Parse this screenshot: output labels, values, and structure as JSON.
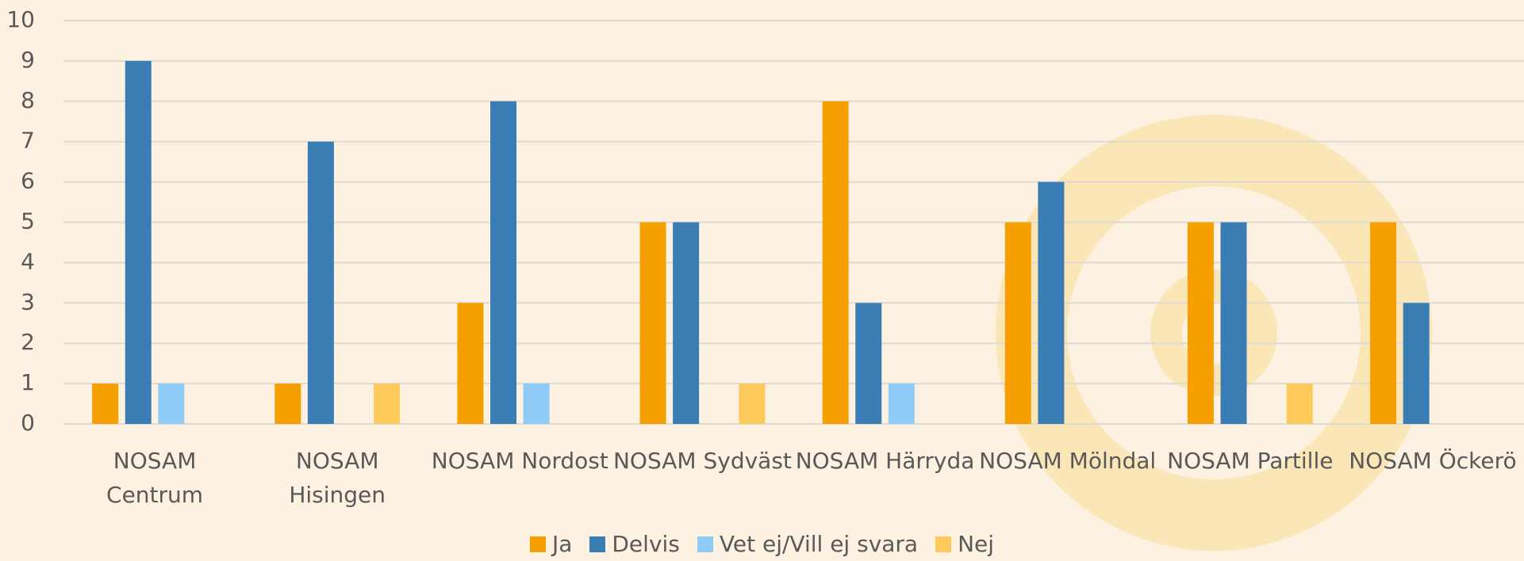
{
  "chart_data": {
    "type": "bar",
    "categories": [
      "NOSAM Centrum",
      "NOSAM Hisingen",
      "NOSAM Nordost",
      "NOSAM Sydväst",
      "NOSAM Härryda",
      "NOSAM Mölndal",
      "NOSAM Partille",
      "NOSAM Öckerö"
    ],
    "series": [
      {
        "name": "Ja",
        "color": "#f5a000",
        "values": [
          1,
          1,
          3,
          5,
          8,
          5,
          5,
          5
        ]
      },
      {
        "name": "Delvis",
        "color": "#3a7db5",
        "values": [
          9,
          7,
          8,
          5,
          3,
          6,
          5,
          3
        ]
      },
      {
        "name": "Vet ej/Vill ej svara",
        "color": "#8ecbf7",
        "values": [
          1,
          0,
          1,
          0,
          1,
          0,
          0,
          0
        ]
      },
      {
        "name": "Nej",
        "color": "#fdc95a",
        "values": [
          0,
          1,
          0,
          1,
          0,
          0,
          1,
          0
        ]
      }
    ],
    "ylim": [
      0,
      10
    ],
    "yticks": [
      0,
      1,
      2,
      3,
      4,
      5,
      6,
      7,
      8,
      9,
      10
    ],
    "grid": true,
    "legend": "bottom"
  }
}
